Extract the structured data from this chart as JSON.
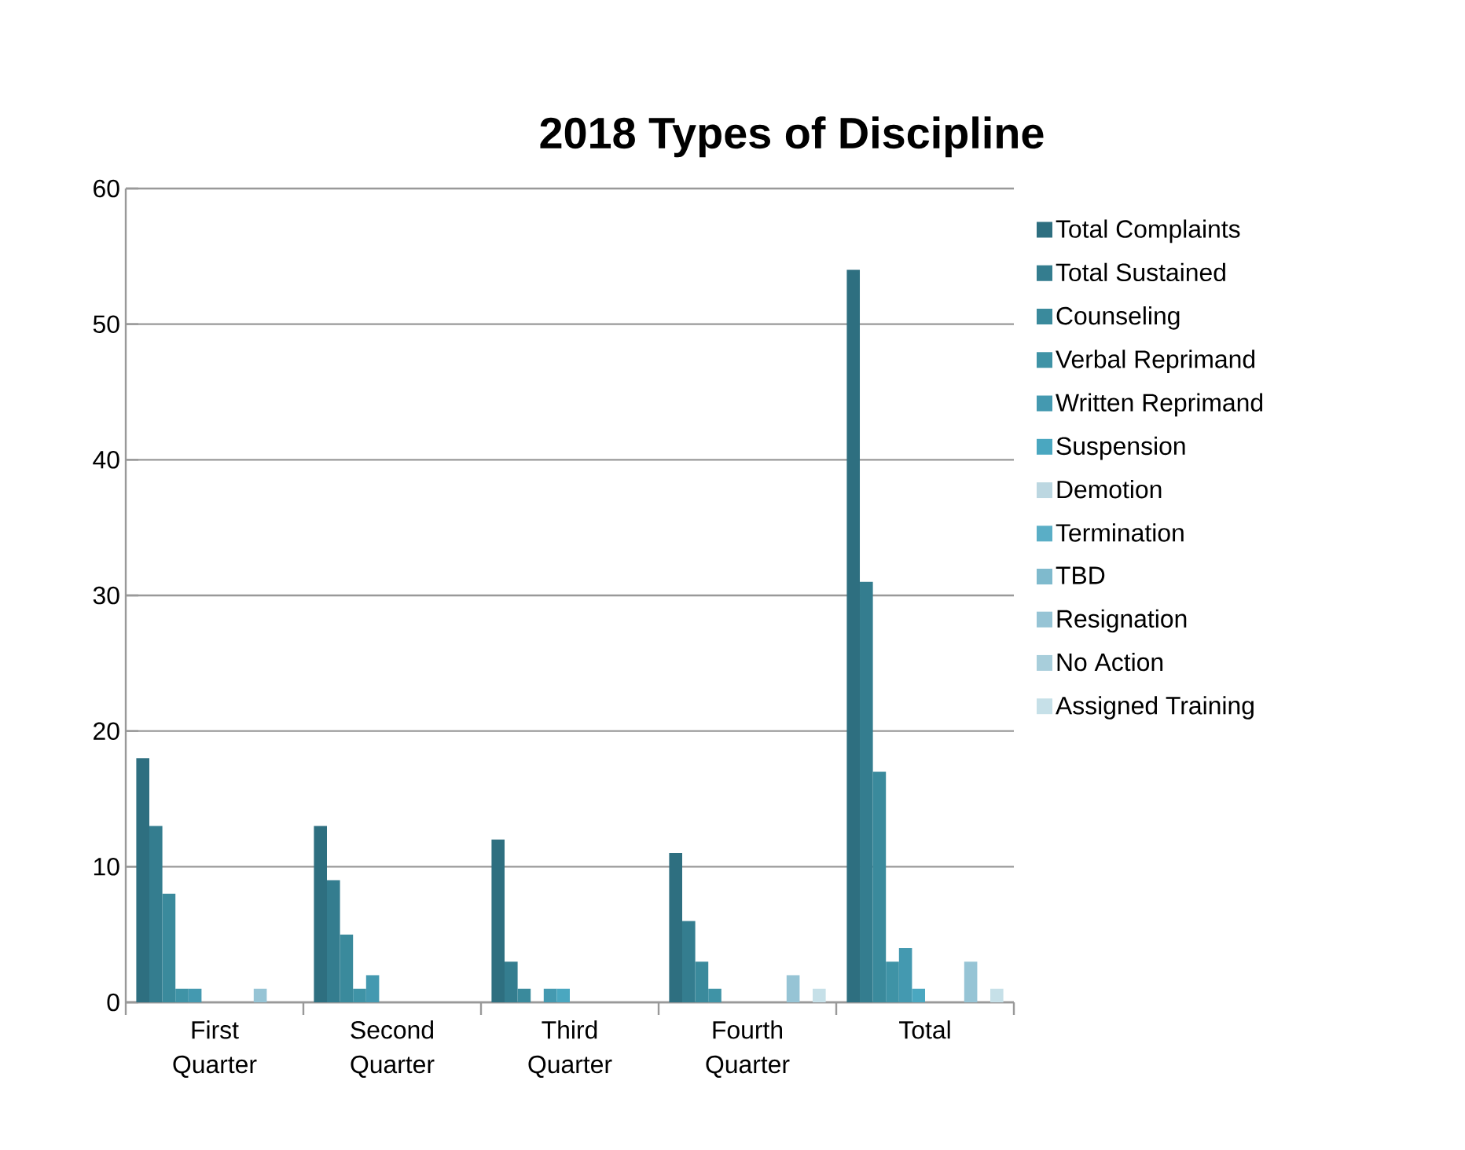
{
  "chart_data": {
    "type": "bar",
    "title": "2018 Types of Discipline",
    "categories": [
      "First Quarter",
      "Second Quarter",
      "Third Quarter",
      "Fourth Quarter",
      "Total"
    ],
    "series": [
      {
        "name": "Total Complaints",
        "color": "#2e6f80",
        "values": [
          18,
          13,
          12,
          11,
          54
        ]
      },
      {
        "name": "Total Sustained",
        "color": "#347d8f",
        "values": [
          13,
          9,
          3,
          6,
          31
        ]
      },
      {
        "name": "Counseling",
        "color": "#3a8a9c",
        "values": [
          8,
          5,
          1,
          3,
          17
        ]
      },
      {
        "name": "Verbal Reprimand",
        "color": "#3f93a6",
        "values": [
          1,
          1,
          0,
          1,
          3
        ]
      },
      {
        "name": "Written Reprimand",
        "color": "#4499b0",
        "values": [
          1,
          2,
          1,
          0,
          4
        ]
      },
      {
        "name": "Suspension",
        "color": "#4aa7c0",
        "values": [
          0,
          0,
          1,
          0,
          1
        ]
      },
      {
        "name": "Demotion",
        "color": "#bcd7e1",
        "values": [
          0,
          0,
          0,
          0,
          0
        ]
      },
      {
        "name": "Termination",
        "color": "#5aaec6",
        "values": [
          0,
          0,
          0,
          0,
          0
        ]
      },
      {
        "name": "TBD",
        "color": "#7fbacd",
        "values": [
          0,
          0,
          0,
          0,
          0
        ]
      },
      {
        "name": "Resignation",
        "color": "#96c4d5",
        "values": [
          1,
          0,
          0,
          2,
          3
        ]
      },
      {
        "name": "No Action",
        "color": "#a8cedb",
        "values": [
          0,
          0,
          0,
          0,
          0
        ]
      },
      {
        "name": "Assigned Training",
        "color": "#c6e0e8",
        "values": [
          0,
          0,
          0,
          1,
          1
        ]
      }
    ],
    "ylim": [
      0,
      60
    ],
    "yticks": [
      0,
      10,
      20,
      30,
      40,
      50,
      60
    ],
    "grid": "y",
    "legend": "right"
  }
}
